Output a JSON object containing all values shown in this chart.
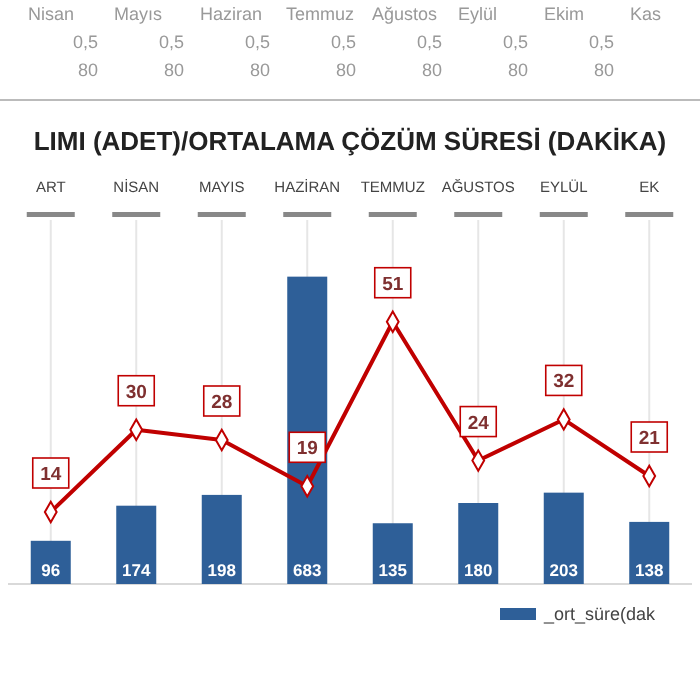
{
  "chart_data": {
    "type": "bar",
    "title": "LIMI (ADET)/ORTALAMA ÇÖZÜM SÜRESİ (DAKİKA)",
    "categories": [
      "ART",
      "NİSAN",
      "MAYIS",
      "HAZİRAN",
      "TEMMUZ",
      "AĞUSTOS",
      "EYLÜL",
      "EK"
    ],
    "series": [
      {
        "name": "_ort_süre(dak",
        "color": "#2e5f98",
        "values": [
          96,
          174,
          198,
          683,
          135,
          180,
          203,
          138
        ]
      },
      {
        "type": "line",
        "axis": "y2",
        "color": "#c00000",
        "values": [
          14,
          30,
          28,
          19,
          51,
          24,
          32,
          21
        ]
      }
    ],
    "ylim": [
      0,
      800
    ],
    "y2lim": [
      0,
      70
    ],
    "data_labels": true,
    "grid": "x",
    "legend": "bottom right",
    "marker": "diamond",
    "line_style": "solid",
    "tick_labels": "x",
    "annotations": [
      "Nisan",
      "Mayıs",
      "Haziran",
      "Temmuz",
      "Ağustos",
      "Eylül",
      "Ekim",
      "Kas",
      "0,5",
      "0,5",
      "0,5",
      "0,5",
      "0,5",
      "0,5",
      "0,5",
      "80",
      "80",
      "80",
      "80",
      "80",
      "80",
      "80"
    ]
  }
}
